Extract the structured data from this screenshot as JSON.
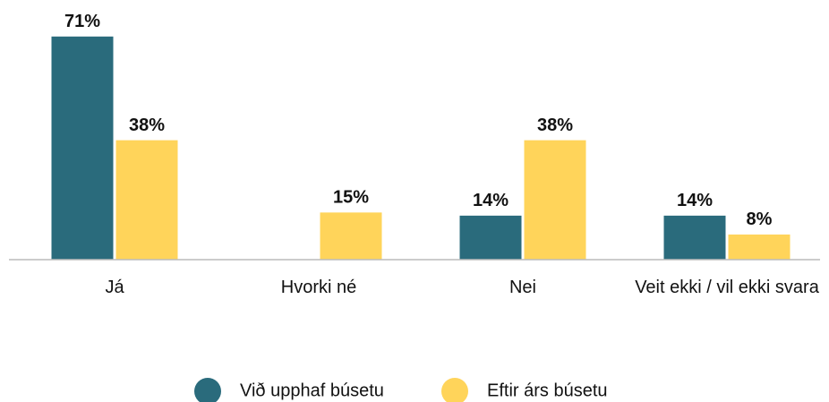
{
  "chart_data": {
    "type": "bar",
    "categories": [
      "Já",
      "Hvorki né",
      "Nei",
      "Veit ekki / vil ekki svara"
    ],
    "series": [
      {
        "name": "Við upphaf búsetu",
        "color": "#2a6b7c",
        "values": [
          71,
          null,
          14,
          14
        ],
        "value_labels": [
          "71%",
          null,
          "14%",
          "14%"
        ]
      },
      {
        "name": "Eftir árs búsetu",
        "color": "#ffd45a",
        "values": [
          38,
          15,
          38,
          8
        ],
        "value_labels": [
          "38%",
          "15%",
          "38%",
          "8%"
        ]
      }
    ],
    "legend": "bottom"
  }
}
